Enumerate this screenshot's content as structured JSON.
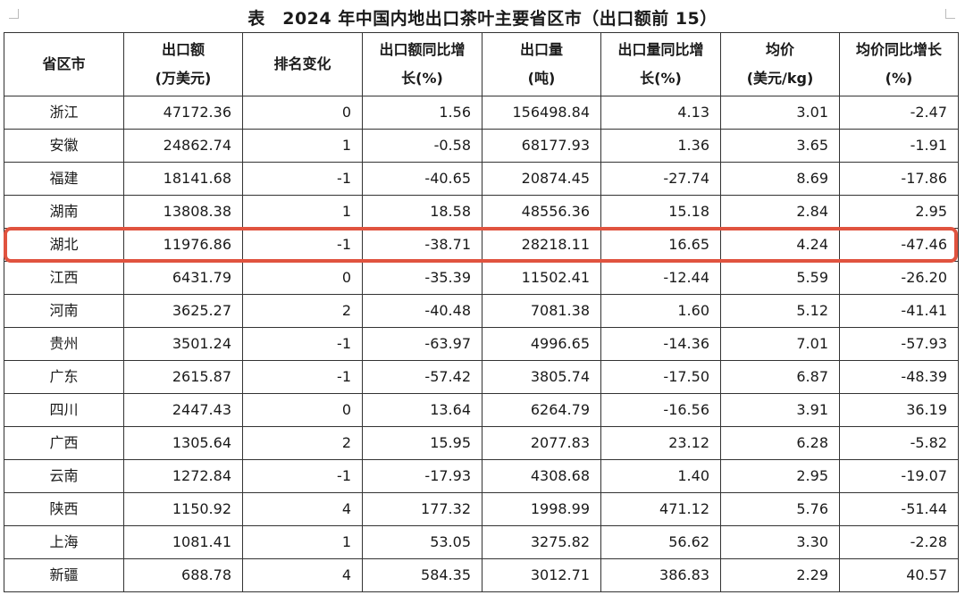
{
  "title": "表　2024 年中国内地出口茶叶主要省区市（出口额前 15）",
  "headers": [
    {
      "line1": "省区市",
      "line2": ""
    },
    {
      "line1": "出口额",
      "line2": "(万美元)"
    },
    {
      "line1": "排名变化",
      "line2": ""
    },
    {
      "line1": "出口额同比增",
      "line2": "长(%)"
    },
    {
      "line1": "出口量",
      "line2": "(吨)"
    },
    {
      "line1": "出口量同比增",
      "line2": "长(%)"
    },
    {
      "line1": "均价",
      "line2": "(美元/kg)"
    },
    {
      "line1": "均价同比增长",
      "line2": "(%)"
    }
  ],
  "rows": [
    [
      "浙江",
      "47172.36",
      "0",
      "1.56",
      "156498.84",
      "4.13",
      "3.01",
      "-2.47"
    ],
    [
      "安徽",
      "24862.74",
      "1",
      "-0.58",
      "68177.93",
      "1.36",
      "3.65",
      "-1.91"
    ],
    [
      "福建",
      "18141.68",
      "-1",
      "-40.65",
      "20874.45",
      "-27.74",
      "8.69",
      "-17.86"
    ],
    [
      "湖南",
      "13808.38",
      "1",
      "18.58",
      "48556.36",
      "15.18",
      "2.84",
      "2.95"
    ],
    [
      "湖北",
      "11976.86",
      "-1",
      "-38.71",
      "28218.11",
      "16.65",
      "4.24",
      "-47.46"
    ],
    [
      "江西",
      "6431.79",
      "0",
      "-35.39",
      "11502.41",
      "-12.44",
      "5.59",
      "-26.20"
    ],
    [
      "河南",
      "3625.27",
      "2",
      "-40.48",
      "7081.38",
      "1.60",
      "5.12",
      "-41.41"
    ],
    [
      "贵州",
      "3501.24",
      "-1",
      "-63.97",
      "4996.65",
      "-14.36",
      "7.01",
      "-57.93"
    ],
    [
      "广东",
      "2615.87",
      "-1",
      "-57.42",
      "3805.74",
      "-17.50",
      "6.87",
      "-48.39"
    ],
    [
      "四川",
      "2447.43",
      "0",
      "13.64",
      "6264.79",
      "-16.56",
      "3.91",
      "36.19"
    ],
    [
      "广西",
      "1305.64",
      "2",
      "15.95",
      "2077.83",
      "23.12",
      "6.28",
      "-5.82"
    ],
    [
      "云南",
      "1272.84",
      "-1",
      "-17.93",
      "4308.68",
      "1.40",
      "2.95",
      "-19.07"
    ],
    [
      "陕西",
      "1150.92",
      "4",
      "177.32",
      "1998.99",
      "471.12",
      "5.76",
      "-51.44"
    ],
    [
      "上海",
      "1081.41",
      "1",
      "53.05",
      "3275.82",
      "56.62",
      "3.30",
      "-2.28"
    ],
    [
      "新疆",
      "688.78",
      "4",
      "584.35",
      "3012.71",
      "386.83",
      "2.29",
      "40.57"
    ]
  ],
  "highlight_row": "湖北",
  "highlight_color": "#e0533f"
}
